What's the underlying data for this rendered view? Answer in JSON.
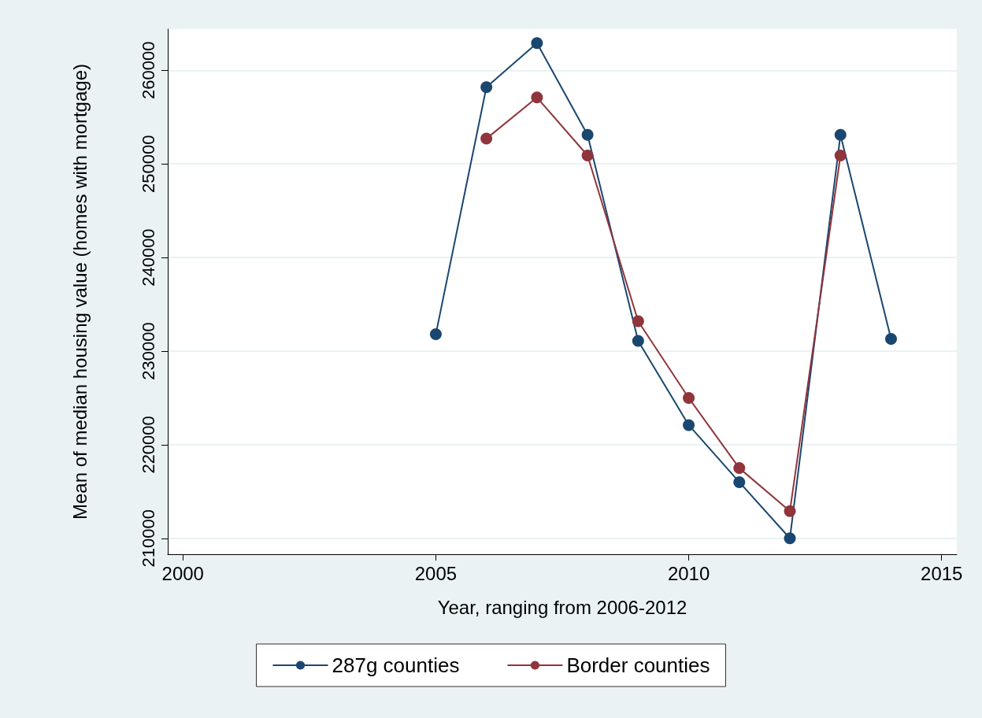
{
  "chart_data": {
    "type": "line",
    "xlabel": "Year, ranging from 2006-2012",
    "ylabel": "Mean of median housing value (homes with mortgage)",
    "xlim": [
      1999.7,
      2015.3
    ],
    "xticks": [
      2000,
      2005,
      2010,
      2015
    ],
    "ylim": [
      208300,
      264400
    ],
    "yticks": [
      210000,
      220000,
      230000,
      240000,
      250000,
      260000
    ],
    "grid": "y",
    "legend": "bottom",
    "marker": "circle",
    "line_style": "solid",
    "series": [
      {
        "name": "287g counties",
        "color": "#1a476f",
        "x": [
          2005,
          2006,
          2007,
          2008,
          2009,
          2010,
          2011,
          2012,
          2013,
          2014
        ],
        "values": [
          231800,
          258200,
          262900,
          253100,
          231100,
          222100,
          216000,
          210000,
          253100,
          231300
        ]
      },
      {
        "name": "Border counties",
        "color": "#90353b",
        "x": [
          2006,
          2007,
          2008,
          2009,
          2010,
          2011,
          2012,
          2013
        ],
        "values": [
          252700,
          257100,
          250900,
          233200,
          225000,
          217500,
          212900,
          250900
        ]
      }
    ]
  }
}
